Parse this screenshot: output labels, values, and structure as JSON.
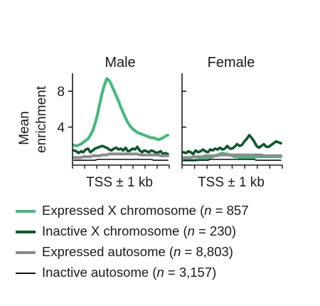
{
  "chart_data": {
    "type": "line",
    "ylabel": [
      "Mean",
      "enrichment"
    ],
    "y_ticks": [
      {
        "value": 4,
        "label": "4"
      },
      {
        "value": 8,
        "label": "8"
      }
    ],
    "ylim": [
      0,
      10
    ],
    "x_points": 41,
    "series_styles": [
      {
        "key": "expressed_x",
        "color": "#3dbb78",
        "width": 4.0
      },
      {
        "key": "inactive_x",
        "color": "#0b5a2a",
        "width": 3.6
      },
      {
        "key": "expressed_auto",
        "color": "#8c8c8c",
        "width": 4.0
      },
      {
        "key": "inactive_auto",
        "color": "#111111",
        "width": 1.6
      }
    ],
    "panels": [
      {
        "title": "Male",
        "xlabel": "TSS ± 1 kb",
        "series": {
          "expressed_x": [
            2.0,
            1.9,
            2.0,
            2.1,
            2.3,
            2.5,
            2.7,
            3.1,
            3.6,
            4.4,
            5.4,
            6.6,
            7.8,
            8.7,
            9.4,
            9.2,
            8.7,
            8.1,
            7.5,
            6.9,
            6.2,
            5.6,
            5.0,
            4.5,
            4.1,
            3.8,
            3.6,
            3.4,
            3.3,
            3.2,
            3.1,
            3.0,
            2.9,
            2.8,
            2.8,
            2.7,
            2.6,
            2.7,
            2.8,
            3.0,
            3.1
          ],
          "inactive_x": [
            1.4,
            1.3,
            1.1,
            1.3,
            1.2,
            1.5,
            1.6,
            1.2,
            1.4,
            1.6,
            1.7,
            1.8,
            1.9,
            1.8,
            1.7,
            1.5,
            1.4,
            1.6,
            1.7,
            1.5,
            1.6,
            1.4,
            1.7,
            1.3,
            1.4,
            1.6,
            1.5,
            1.8,
            1.4,
            1.2,
            1.4,
            1.3,
            1.2,
            1.4,
            1.3,
            1.1,
            1.2,
            1.3,
            1.0,
            1.1,
            1.0
          ],
          "expressed_auto": [
            0.6,
            0.6,
            0.6,
            0.6,
            0.7,
            0.7,
            0.7,
            0.7,
            0.8,
            0.8,
            0.8,
            0.8,
            0.9,
            0.9,
            0.9,
            1.0,
            1.0,
            1.0,
            1.0,
            1.0,
            1.0,
            1.0,
            1.0,
            1.0,
            1.0,
            1.0,
            1.0,
            1.0,
            0.9,
            0.9,
            0.9,
            0.9,
            0.9,
            0.9,
            0.9,
            0.9,
            0.9,
            0.8,
            0.8,
            0.8,
            0.8
          ],
          "inactive_auto": [
            0.3,
            0.3,
            0.3,
            0.3,
            0.3,
            0.3,
            0.3,
            0.3,
            0.3,
            0.3,
            0.4,
            0.4,
            0.4,
            0.4,
            0.4,
            0.4,
            0.4,
            0.4,
            0.4,
            0.4,
            0.4,
            0.4,
            0.4,
            0.4,
            0.4,
            0.4,
            0.4,
            0.4,
            0.4,
            0.4,
            0.4,
            0.4,
            0.4,
            0.4,
            0.3,
            0.3,
            0.3,
            0.3,
            0.3,
            0.3,
            0.3
          ]
        }
      },
      {
        "title": "Female",
        "xlabel": "TSS ± 1 kb",
        "series": {
          "expressed_x": [
            0.3,
            0.3,
            0.3,
            0.3,
            0.3,
            0.3,
            0.4,
            0.4,
            0.4,
            0.5,
            0.5,
            0.6,
            0.7,
            0.8,
            0.9,
            1.0,
            1.1,
            1.0,
            1.0,
            0.9,
            0.8,
            0.7,
            0.7,
            0.6,
            0.6,
            0.6,
            0.6,
            0.6,
            0.6,
            0.6,
            0.7,
            0.7,
            0.7,
            0.7,
            0.7,
            0.7,
            0.7,
            0.7,
            0.7,
            0.7,
            0.7
          ],
          "inactive_x": [
            1.2,
            1.1,
            1.3,
            1.2,
            1.0,
            1.4,
            1.2,
            1.3,
            1.5,
            1.3,
            1.2,
            1.5,
            1.4,
            1.6,
            1.5,
            1.7,
            1.5,
            1.6,
            1.9,
            1.6,
            1.6,
            1.8,
            2.1,
            1.9,
            2.0,
            2.4,
            2.7,
            3.1,
            2.8,
            2.4,
            1.9,
            1.7,
            1.9,
            2.1,
            1.8,
            1.8,
            2.0,
            2.2,
            2.4,
            2.3,
            2.2
          ],
          "expressed_auto": [
            0.6,
            0.6,
            0.6,
            0.6,
            0.7,
            0.7,
            0.7,
            0.7,
            0.7,
            0.8,
            0.8,
            0.8,
            0.8,
            0.8,
            0.8,
            0.9,
            0.9,
            0.9,
            0.9,
            0.9,
            0.9,
            0.9,
            0.9,
            0.9,
            0.9,
            0.9,
            0.9,
            0.9,
            0.9,
            0.9,
            0.9,
            0.9,
            0.9,
            0.8,
            0.8,
            0.8,
            0.8,
            0.8,
            0.8,
            0.8,
            0.8
          ],
          "inactive_auto": [
            0.3,
            0.3,
            0.3,
            0.3,
            0.3,
            0.3,
            0.3,
            0.3,
            0.3,
            0.3,
            0.3,
            0.4,
            0.4,
            0.4,
            0.4,
            0.4,
            0.4,
            0.4,
            0.4,
            0.4,
            0.4,
            0.4,
            0.4,
            0.4,
            0.4,
            0.4,
            0.4,
            0.4,
            0.4,
            0.4,
            0.3,
            0.3,
            0.3,
            0.3,
            0.3,
            0.3,
            0.3,
            0.3,
            0.3,
            0.3,
            0.3
          ]
        }
      }
    ]
  },
  "legend": [
    {
      "key": "expressed_x",
      "color": "#3dbb78",
      "parts": [
        "Expressed X chromosome (",
        "n",
        " = 857"
      ]
    },
    {
      "key": "inactive_x",
      "color": "#0b5a2a",
      "parts": [
        "Inactive X chromosome (",
        "n",
        " = 230)"
      ]
    },
    {
      "key": "expressed_auto",
      "color": "#8c8c8c",
      "parts": [
        "Expressed autosome (",
        "n",
        " = 8,803)"
      ]
    },
    {
      "key": "inactive_auto",
      "color": "#111111",
      "parts": [
        "Inactive autosome (",
        "n",
        " = 3,157)"
      ]
    }
  ]
}
